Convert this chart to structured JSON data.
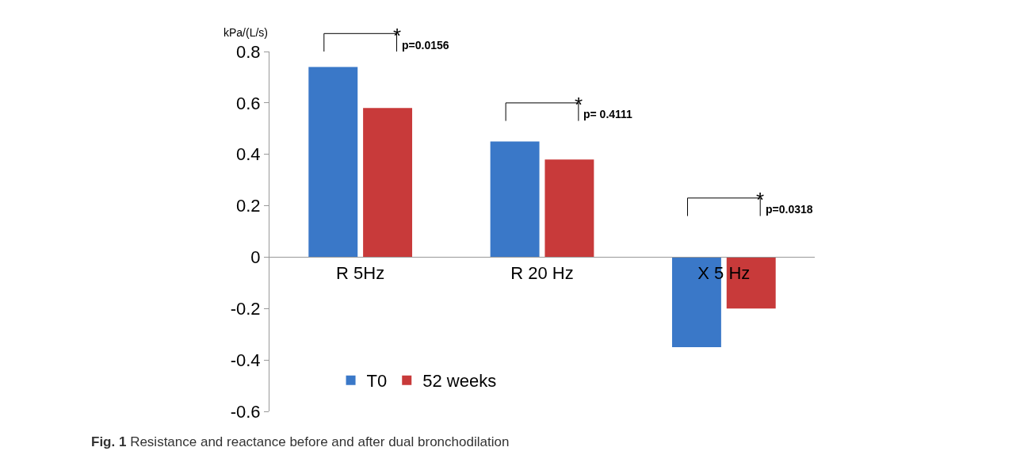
{
  "chart_data": {
    "type": "bar",
    "ylabel": "kPa/(L/s)",
    "categories": [
      "R 5Hz",
      "R 20 Hz",
      "X 5 Hz"
    ],
    "series": [
      {
        "name": "T0",
        "color": "#3a78c8",
        "values": [
          0.74,
          0.45,
          -0.35
        ]
      },
      {
        "name": "52 weeks",
        "color": "#c83a3a",
        "values": [
          0.58,
          0.38,
          -0.2
        ]
      }
    ],
    "ylim": [
      -0.6,
      0.8
    ],
    "yticks": [
      {
        "value": -0.6,
        "label": "-0.6"
      },
      {
        "value": -0.4,
        "label": "-0.4"
      },
      {
        "value": -0.2,
        "label": "-0.2"
      },
      {
        "value": 0,
        "label": "0"
      },
      {
        "value": 0.2,
        "label": "0.2"
      },
      {
        "value": 0.4,
        "label": "0.4"
      },
      {
        "value": 0.6,
        "label": "0.6"
      },
      {
        "value": 0.8,
        "label": "0.8"
      }
    ],
    "legend": "bottom left",
    "annotations": [
      "*",
      "p=0.0156",
      "*",
      "p= 0.4111",
      "*",
      "p=0.0318",
      "**Fig. 1** Resistance and reactance before and after dual bronchodilation"
    ]
  }
}
